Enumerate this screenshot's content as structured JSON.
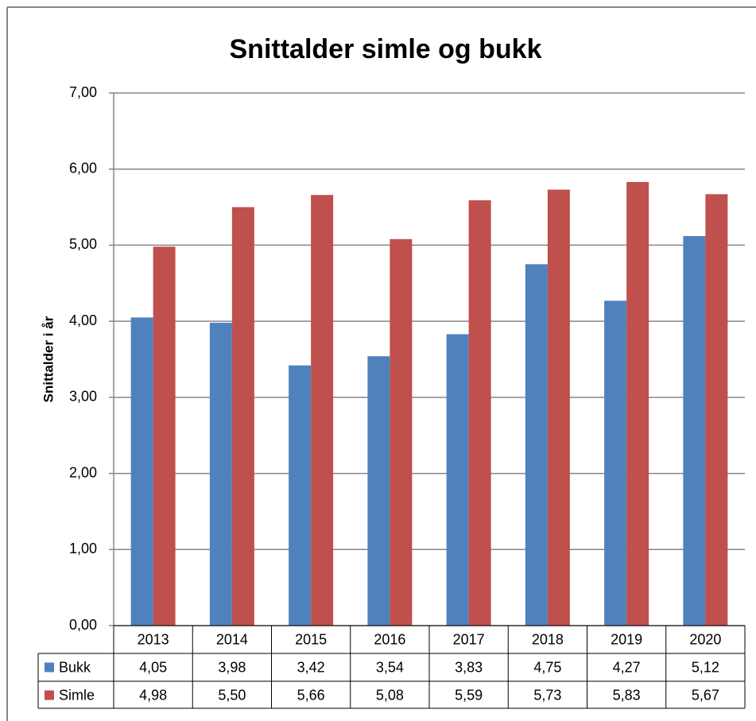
{
  "chart_data": {
    "type": "bar",
    "title": "Snittalder simle og bukk",
    "y_label": "Snittalder i år",
    "categories": [
      "2013",
      "2014",
      "2015",
      "2016",
      "2017",
      "2018",
      "2019",
      "2020"
    ],
    "series": [
      {
        "name": "Bukk",
        "color": "#4f81bd",
        "values": [
          4.05,
          3.98,
          3.42,
          3.54,
          3.83,
          4.75,
          4.27,
          5.12
        ],
        "value_labels": [
          "4,05",
          "3,98",
          "3,42",
          "3,54",
          "3,83",
          "4,75",
          "4,27",
          "5,12"
        ]
      },
      {
        "name": "Simle",
        "color": "#c0504d",
        "values": [
          4.98,
          5.5,
          5.66,
          5.08,
          5.59,
          5.73,
          5.83,
          5.67
        ],
        "value_labels": [
          "4,98",
          "5,50",
          "5,66",
          "5,08",
          "5,59",
          "5,73",
          "5,83",
          "5,67"
        ]
      }
    ],
    "ylim": [
      0,
      7
    ],
    "yticks": [
      {
        "value": 0,
        "label": "0,00"
      },
      {
        "value": 1,
        "label": "1,00"
      },
      {
        "value": 2,
        "label": "2,00"
      },
      {
        "value": 3,
        "label": "3,00"
      },
      {
        "value": 4,
        "label": "4,00"
      },
      {
        "value": 5,
        "label": "5,00"
      },
      {
        "value": 6,
        "label": "6,00"
      },
      {
        "value": 7,
        "label": "7,00"
      }
    ],
    "grid": true
  }
}
